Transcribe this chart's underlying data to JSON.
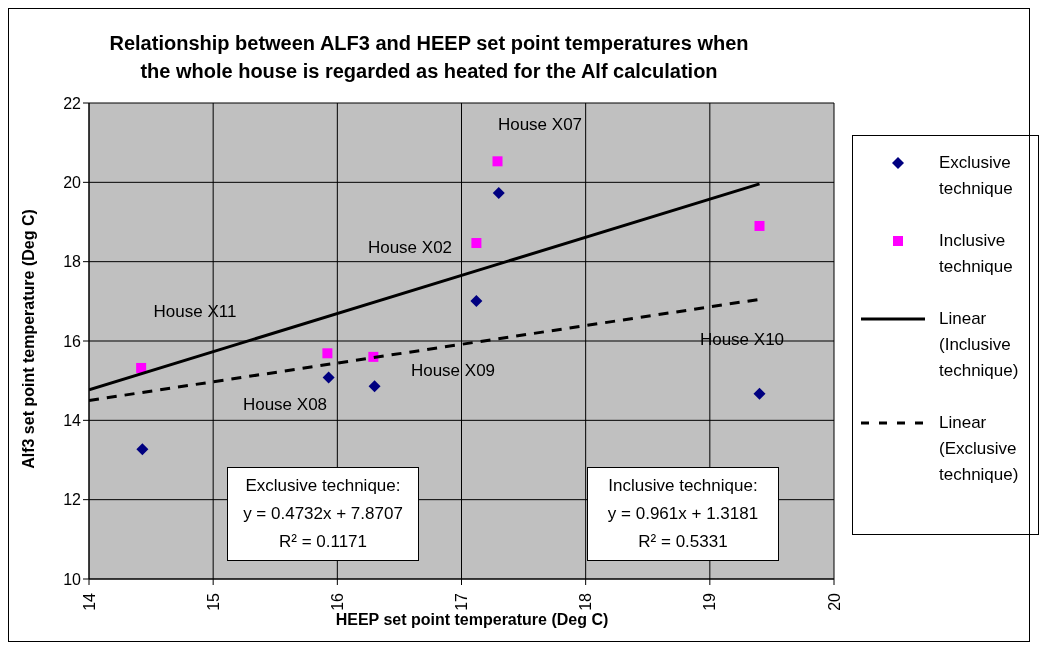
{
  "chart_data": {
    "type": "scatter",
    "title": "Relationship between ALF3 and HEEP set point temperatures when\nthe whole house is regarded as heated for the Alf calculation",
    "xlabel": "HEEP set point temperature (Deg C)",
    "ylabel": "Alf3 set point temperature (Deg C)",
    "xlim": [
      14,
      20
    ],
    "xticks": [
      14,
      15,
      16,
      17,
      18,
      19,
      20
    ],
    "ylim": [
      10,
      22
    ],
    "yticks": [
      10,
      12,
      14,
      16,
      18,
      20,
      22
    ],
    "grid": true,
    "legend": "right",
    "series": [
      {
        "name": "Exclusive technique",
        "type": "scatter",
        "marker": "diamond",
        "color": "#000080",
        "x": [
          14.43,
          15.93,
          16.3,
          17.12,
          17.3,
          19.4
        ],
        "values": [
          13.27,
          15.08,
          14.86,
          17.01,
          19.73,
          14.67
        ]
      },
      {
        "name": "Inclusive technique",
        "type": "scatter",
        "marker": "square",
        "color": "#ff00ff",
        "x": [
          14.42,
          15.92,
          16.29,
          17.12,
          17.29,
          19.4
        ],
        "values": [
          15.32,
          15.69,
          15.6,
          18.47,
          20.53,
          18.9
        ]
      },
      {
        "name": "Linear (Inclusive technique)",
        "type": "line",
        "marker": "none",
        "line_style": "solid",
        "color": "#000000",
        "x": [
          14,
          19.4
        ],
        "values": [
          14.77,
          19.96
        ]
      },
      {
        "name": "Linear (Exclusive technique)",
        "type": "line",
        "marker": "none",
        "line_style": "dashed",
        "color": "#000000",
        "x": [
          14,
          19.4
        ],
        "values": [
          14.5,
          17.05
        ]
      }
    ],
    "annotations": [
      "House X11",
      "House X08",
      "House X09",
      "House X02",
      "House X07",
      "House X10",
      "Exclusive technique:\ny = 0.4732x + 7.8707\nR² = 0.1171",
      "Inclusive technique:\ny = 0.961x + 1.3181\nR² = 0.5331"
    ]
  }
}
